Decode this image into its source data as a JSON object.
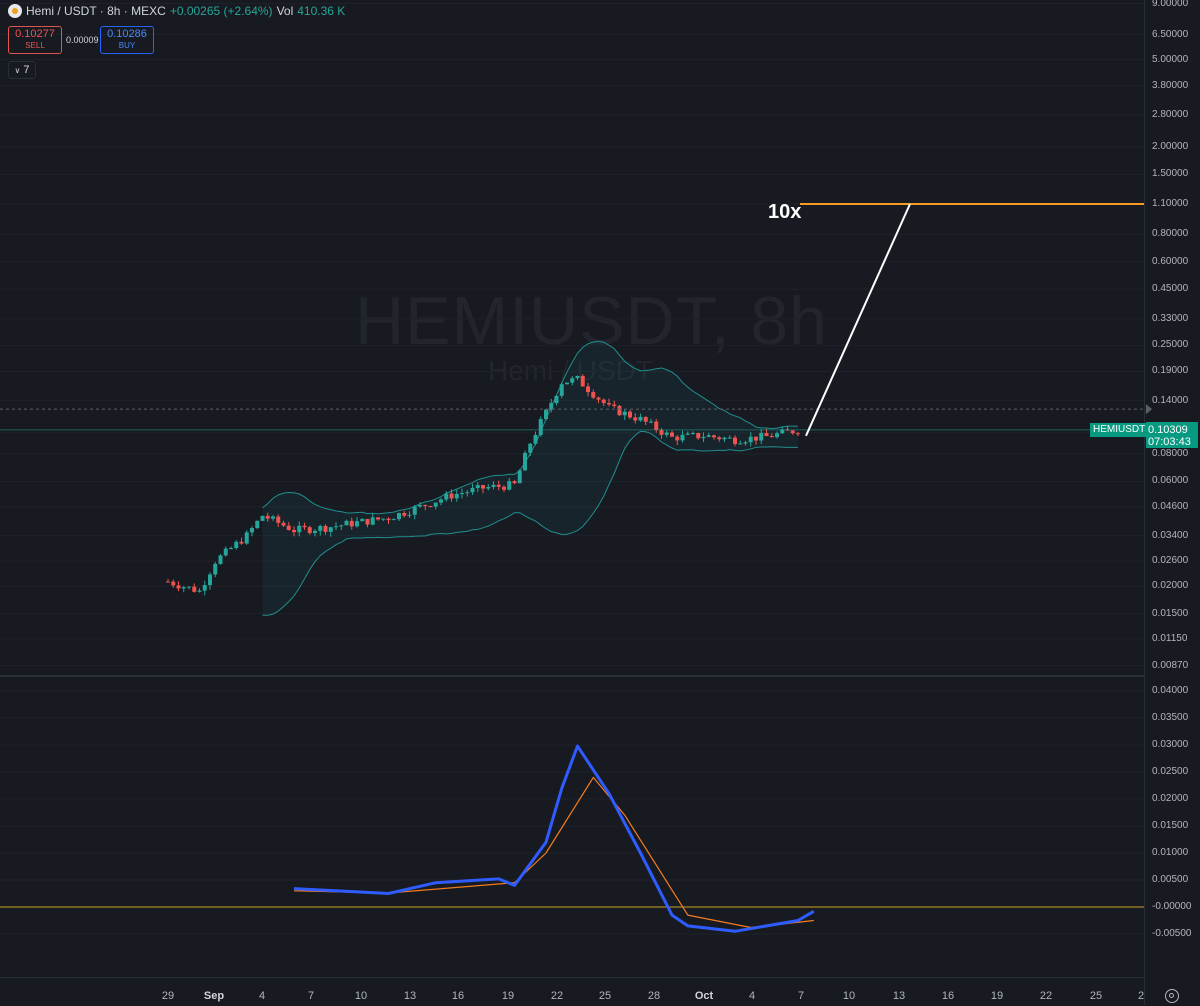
{
  "header": {
    "symbol_title": "Hemi / USDT · 8h · MEXC",
    "change": "+0.00265 (+2.64%)",
    "vol_label": "Vol",
    "vol_value": "410.36 K",
    "icon": "hemi-coin-icon"
  },
  "trade": {
    "sell_price": "0.10277",
    "sell_label": "SELL",
    "spread": "0.00009",
    "buy_price": "0.10286",
    "buy_label": "BUY"
  },
  "indicators_toggle": "7",
  "watermark": {
    "symbol": "HEMIUSDT, 8h",
    "name": "Hemi / USDT"
  },
  "annotation": {
    "target_label": "10x",
    "target_price": 1.1
  },
  "last_price": {
    "symbol": "HEMIUSDT",
    "price": "0.10309",
    "countdown": "07:03:43"
  },
  "price_axis_labels": [
    "9.00000",
    "6.50000",
    "5.00000",
    "3.80000",
    "2.80000",
    "2.00000",
    "1.50000",
    "1.10000",
    "0.80000",
    "0.60000",
    "0.45000",
    "0.33000",
    "0.25000",
    "0.19000",
    "0.14000",
    "0.10000",
    "0.08000",
    "0.06000",
    "0.04600",
    "0.03400",
    "0.02600",
    "0.02000",
    "0.01500",
    "0.01150",
    "0.00870"
  ],
  "osc_axis_labels": [
    "0.04000",
    "0.03500",
    "0.03000",
    "0.02500",
    "0.02000",
    "0.01500",
    "0.01000",
    "0.00500",
    "-0.00000",
    "-0.00500"
  ],
  "time_axis_labels": [
    {
      "text": "29",
      "bold": false
    },
    {
      "text": "Sep",
      "bold": true
    },
    {
      "text": "4",
      "bold": false
    },
    {
      "text": "7",
      "bold": false
    },
    {
      "text": "10",
      "bold": false
    },
    {
      "text": "13",
      "bold": false
    },
    {
      "text": "16",
      "bold": false
    },
    {
      "text": "19",
      "bold": false
    },
    {
      "text": "22",
      "bold": false
    },
    {
      "text": "25",
      "bold": false
    },
    {
      "text": "28",
      "bold": false
    },
    {
      "text": "Oct",
      "bold": true
    },
    {
      "text": "4",
      "bold": false
    },
    {
      "text": "7",
      "bold": false
    },
    {
      "text": "10",
      "bold": false
    },
    {
      "text": "13",
      "bold": false
    },
    {
      "text": "16",
      "bold": false
    },
    {
      "text": "19",
      "bold": false
    },
    {
      "text": "22",
      "bold": false
    },
    {
      "text": "25",
      "bold": false
    },
    {
      "text": "2",
      "bold": false
    }
  ],
  "colors": {
    "up": "#26a69a",
    "down": "#ef5350",
    "band": "#1f8f8f",
    "target_line": "#f59a23",
    "osc_fast": "#2f5cff",
    "osc_slow": "#f57c1f",
    "zero_line": "#c8a021"
  },
  "chart_data": {
    "type": "candlestick",
    "timeframe": "8h",
    "scale": "log",
    "price_series": [
      {
        "date": "Aug 29",
        "close": 0.021
      },
      {
        "date": "Aug 31",
        "close": 0.019
      },
      {
        "date": "Sep 1",
        "close": 0.026
      },
      {
        "date": "Sep 3",
        "close": 0.034
      },
      {
        "date": "Sep 4",
        "close": 0.042
      },
      {
        "date": "Sep 6",
        "close": 0.036
      },
      {
        "date": "Sep 8",
        "close": 0.037
      },
      {
        "date": "Sep 10",
        "close": 0.039
      },
      {
        "date": "Sep 12",
        "close": 0.041
      },
      {
        "date": "Sep 14",
        "close": 0.046
      },
      {
        "date": "Sep 16",
        "close": 0.052
      },
      {
        "date": "Sep 18",
        "close": 0.056
      },
      {
        "date": "Sep 20",
        "close": 0.058
      },
      {
        "date": "Sep 21",
        "close": 0.09
      },
      {
        "date": "Sep 23",
        "close": 0.17
      },
      {
        "date": "Sep 24",
        "close": 0.175
      },
      {
        "date": "Sep 26",
        "close": 0.13
      },
      {
        "date": "Sep 28",
        "close": 0.115
      },
      {
        "date": "Sep 30",
        "close": 0.095
      },
      {
        "date": "Oct 2",
        "close": 0.097
      },
      {
        "date": "Oct 4",
        "close": 0.093
      },
      {
        "date": "Oct 6",
        "close": 0.096
      },
      {
        "date": "Oct 8",
        "close": 0.103
      }
    ],
    "oscillator": {
      "fast": [
        {
          "date": "Sep 6",
          "value": 0.0034
        },
        {
          "date": "Sep 12",
          "value": 0.0025
        },
        {
          "date": "Sep 15",
          "value": 0.0045
        },
        {
          "date": "Sep 19",
          "value": 0.0052
        },
        {
          "date": "Sep 20",
          "value": 0.004
        },
        {
          "date": "Sep 22",
          "value": 0.012
        },
        {
          "date": "Sep 23",
          "value": 0.022
        },
        {
          "date": "Sep 24",
          "value": 0.0298
        },
        {
          "date": "Sep 26",
          "value": 0.021
        },
        {
          "date": "Sep 28",
          "value": 0.01
        },
        {
          "date": "Sep 30",
          "value": -0.0015
        },
        {
          "date": "Oct 1",
          "value": -0.0035
        },
        {
          "date": "Oct 4",
          "value": -0.0045
        },
        {
          "date": "Oct 8",
          "value": -0.0025
        },
        {
          "date": "Oct 9",
          "value": -0.0008
        }
      ],
      "slow": [
        {
          "date": "Sep 6",
          "value": 0.003
        },
        {
          "date": "Sep 12",
          "value": 0.0026
        },
        {
          "date": "Sep 20",
          "value": 0.0045
        },
        {
          "date": "Sep 22",
          "value": 0.01
        },
        {
          "date": "Sep 25",
          "value": 0.024
        },
        {
          "date": "Sep 27",
          "value": 0.017
        },
        {
          "date": "Oct 1",
          "value": -0.0015
        },
        {
          "date": "Oct 5",
          "value": -0.0038
        },
        {
          "date": "Oct 9",
          "value": -0.0025
        }
      ]
    }
  }
}
